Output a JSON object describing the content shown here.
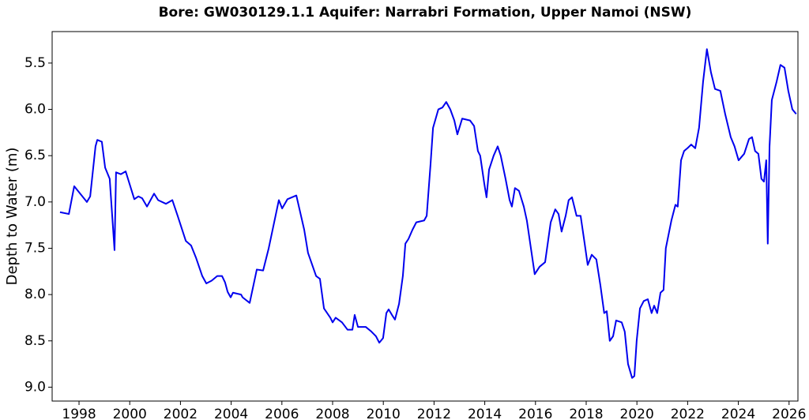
{
  "chart_data": {
    "type": "line",
    "title": "Bore: GW030129.1.1  Aquifer: Narrabri Formation, Upper Namoi (NSW)",
    "ylabel": "Depth to Water (m)",
    "color": "#0000ee",
    "y_inverted": true,
    "xlim": [
      1996.94,
      2026.35
    ],
    "ylim": [
      5.16,
      9.15
    ],
    "xticks": [
      1998,
      2000,
      2002,
      2004,
      2006,
      2008,
      2010,
      2012,
      2014,
      2016,
      2018,
      2020,
      2022,
      2024,
      2026
    ],
    "yticks": [
      5.5,
      {
        "value": 6,
        "label": "6.0"
      },
      6.5,
      {
        "value": 7,
        "label": "7.0"
      },
      7.5,
      {
        "value": 8,
        "label": "8.0"
      },
      8.5,
      {
        "value": 9,
        "label": "9.0"
      }
    ],
    "x": [
      1997.25,
      1997.6,
      1997.81,
      1998.31,
      1998.44,
      1998.65,
      1998.72,
      1998.9,
      1999.03,
      1999.21,
      1999.4,
      1999.46,
      1999.65,
      1999.84,
      2000.18,
      2000.34,
      2000.49,
      2000.68,
      2000.96,
      2001.12,
      2001.43,
      2001.68,
      2001.89,
      2002.21,
      2002.42,
      2002.61,
      2002.86,
      2003.02,
      2003.23,
      2003.45,
      2003.64,
      2003.76,
      2003.86,
      2003.98,
      2004.07,
      2004.39,
      2004.45,
      2004.73,
      2005.01,
      2005.26,
      2005.48,
      2005.88,
      2006.01,
      2006.22,
      2006.57,
      2006.88,
      2007.03,
      2007.35,
      2007.5,
      2007.66,
      2007.91,
      2008.0,
      2008.12,
      2008.37,
      2008.59,
      2008.78,
      2008.87,
      2009.0,
      2009.31,
      2009.53,
      2009.71,
      2009.84,
      2009.99,
      2010.12,
      2010.21,
      2010.34,
      2010.46,
      2010.62,
      2010.77,
      2010.87,
      2010.99,
      2011.15,
      2011.3,
      2011.61,
      2011.71,
      2011.86,
      2011.96,
      2012.17,
      2012.33,
      2012.48,
      2012.64,
      2012.8,
      2012.92,
      2013.11,
      2013.42,
      2013.58,
      2013.73,
      2013.82,
      2013.98,
      2014.07,
      2014.17,
      2014.35,
      2014.51,
      2014.63,
      2014.82,
      2014.98,
      2015.07,
      2015.19,
      2015.35,
      2015.54,
      2015.66,
      2015.82,
      2015.97,
      2016.16,
      2016.38,
      2016.6,
      2016.78,
      2016.91,
      2017.03,
      2017.19,
      2017.31,
      2017.44,
      2017.62,
      2017.78,
      2017.94,
      2018.06,
      2018.22,
      2018.4,
      2018.56,
      2018.71,
      2018.81,
      2018.93,
      2019.06,
      2019.18,
      2019.4,
      2019.52,
      2019.65,
      2019.81,
      2019.9,
      2019.99,
      2020.12,
      2020.27,
      2020.43,
      2020.58,
      2020.68,
      2020.8,
      2020.93,
      2021.05,
      2021.14,
      2021.36,
      2021.52,
      2021.61,
      2021.74,
      2021.86,
      2021.99,
      2022.14,
      2022.3,
      2022.45,
      2022.61,
      2022.76,
      2022.92,
      2023.08,
      2023.29,
      2023.48,
      2023.7,
      2023.85,
      2024.01,
      2024.23,
      2024.42,
      2024.54,
      2024.66,
      2024.79,
      2024.91,
      2025.01,
      2025.1,
      2025.16,
      2025.23,
      2025.32,
      2025.51,
      2025.66,
      2025.82,
      2025.97,
      2026.13,
      2026.28
    ],
    "values": [
      7.11,
      7.13,
      6.83,
      7.0,
      6.94,
      6.4,
      6.33,
      6.35,
      6.63,
      6.75,
      7.52,
      6.68,
      6.7,
      6.67,
      6.97,
      6.94,
      6.96,
      7.05,
      6.91,
      6.98,
      7.02,
      6.98,
      7.15,
      7.42,
      7.47,
      7.6,
      7.8,
      7.88,
      7.85,
      7.8,
      7.8,
      7.87,
      7.97,
      8.03,
      7.98,
      8.0,
      8.03,
      8.09,
      7.73,
      7.74,
      7.5,
      6.98,
      7.07,
      6.97,
      6.93,
      7.3,
      7.55,
      7.8,
      7.83,
      8.15,
      8.25,
      8.3,
      8.25,
      8.3,
      8.38,
      8.38,
      8.22,
      8.35,
      8.35,
      8.4,
      8.45,
      8.52,
      8.47,
      8.2,
      8.16,
      8.22,
      8.27,
      8.1,
      7.8,
      7.45,
      7.4,
      7.3,
      7.22,
      7.2,
      7.15,
      6.6,
      6.2,
      6.0,
      5.98,
      5.92,
      6.0,
      6.12,
      6.27,
      6.1,
      6.12,
      6.18,
      6.45,
      6.5,
      6.8,
      6.95,
      6.65,
      6.5,
      6.4,
      6.5,
      6.75,
      6.98,
      7.05,
      6.85,
      6.88,
      7.05,
      7.2,
      7.5,
      7.78,
      7.7,
      7.65,
      7.22,
      7.08,
      7.13,
      7.32,
      7.15,
      6.98,
      6.95,
      7.15,
      7.15,
      7.45,
      7.68,
      7.57,
      7.62,
      7.9,
      8.2,
      8.18,
      8.5,
      8.45,
      8.28,
      8.3,
      8.4,
      8.75,
      8.9,
      8.88,
      8.5,
      8.15,
      8.07,
      8.05,
      8.2,
      8.12,
      8.2,
      7.98,
      7.95,
      7.5,
      7.2,
      7.03,
      7.05,
      6.55,
      6.45,
      6.42,
      6.38,
      6.42,
      6.2,
      5.7,
      5.35,
      5.6,
      5.78,
      5.8,
      6.05,
      6.3,
      6.4,
      6.55,
      6.48,
      6.32,
      6.3,
      6.45,
      6.48,
      6.75,
      6.78,
      6.55,
      7.45,
      6.4,
      5.9,
      5.7,
      5.52,
      5.55,
      5.8,
      6.0,
      6.05
    ]
  }
}
